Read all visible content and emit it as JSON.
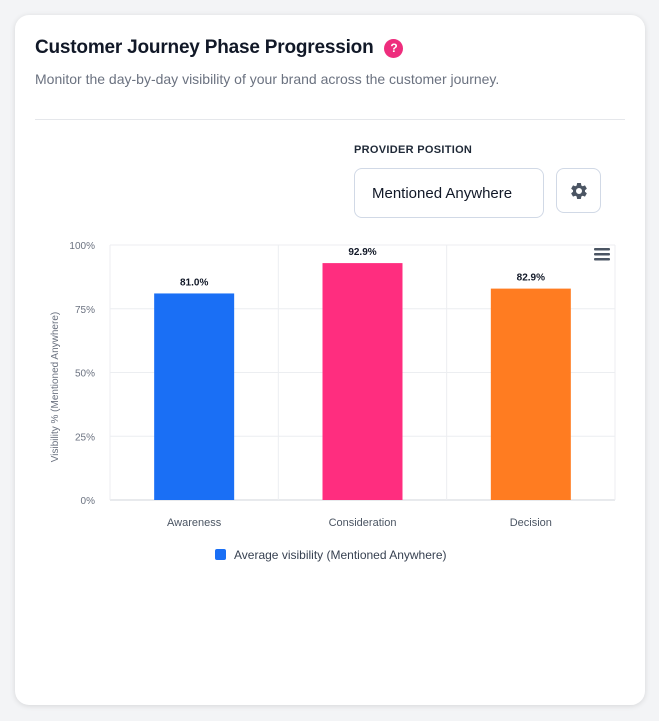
{
  "header": {
    "title": "Customer Journey Phase Progression",
    "help_glyph": "?",
    "subtitle": "Monitor the day-by-day visibility of your brand across the customer journey."
  },
  "provider_position": {
    "label": "PROVIDER POSITION",
    "selected": "Mentioned Anywhere"
  },
  "icons": {
    "settings": "gear-icon",
    "chart_menu": "hamburger-menu-icon",
    "help": "question-icon"
  },
  "colors": {
    "accent": "#ee2d7d",
    "awareness": "#1a6ff5",
    "consideration": "#ff2d7f",
    "decision": "#ff7c21"
  },
  "chart_data": {
    "type": "bar",
    "categories": [
      "Awareness",
      "Consideration",
      "Decision"
    ],
    "series": [
      {
        "name": "Average visibility (Mentioned Anywhere)",
        "values": [
          81.0,
          92.9,
          82.9
        ]
      }
    ],
    "data_labels": [
      "81.0%",
      "92.9%",
      "82.9%"
    ],
    "bar_colors": [
      "#1a6ff5",
      "#ff2d7f",
      "#ff7c21"
    ],
    "ylabel": "Visibility % (Mentioned Anywhere)",
    "xlabel": "",
    "ylim": [
      0,
      100
    ],
    "yticks": [
      0,
      25,
      50,
      75,
      100
    ],
    "ytick_labels": [
      "0%",
      "25%",
      "50%",
      "75%",
      "100%"
    ],
    "legend": {
      "label": "Average visibility (Mentioned Anywhere)",
      "position": "bottom",
      "color": "#1a6ff5"
    },
    "grid": true
  }
}
